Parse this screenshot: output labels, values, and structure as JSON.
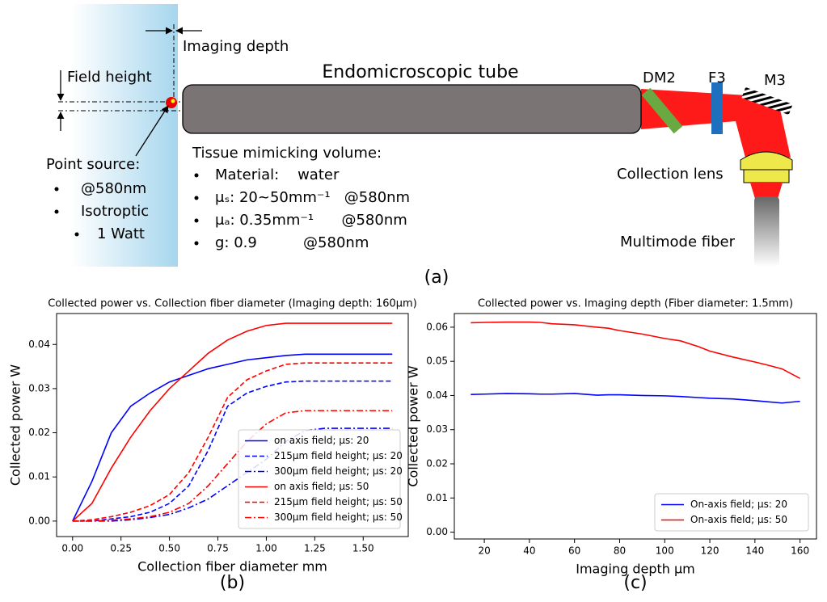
{
  "diagram": {
    "imaging_depth": "Imaging depth",
    "field_height": "Field height",
    "tube": "Endomicroscopic tube",
    "dm2": "DM2",
    "f3": "F3",
    "m3": "M3",
    "point_source": {
      "title": "Point source:",
      "items": [
        "@580nm",
        "Isotroptic",
        "1 Watt"
      ]
    },
    "tissue": {
      "title": "Tissue mimicking volume:",
      "items": [
        "Material:    water",
        "μₛ: 20~50mm⁻¹   @580nm",
        "μₐ: 0.35mm⁻¹      @580nm",
        "g: 0.9          @580nm"
      ]
    },
    "collection_lens": "Collection lens",
    "multimode_fiber": "Multimode fiber",
    "panel_label": "(a)"
  },
  "chart_data": [
    {
      "type": "line",
      "title": "Collected power vs. Collection fiber diameter (Imaging depth: 160μm)",
      "x_label": "Collection fiber diameter mm",
      "y_label": "Collected power W",
      "panel_label": "(b)",
      "x": [
        0,
        0.1,
        0.2,
        0.3,
        0.4,
        0.5,
        0.6,
        0.7,
        0.8,
        0.9,
        1.0,
        1.1,
        1.2,
        1.3,
        1.4,
        1.5,
        1.65
      ],
      "series": [
        {
          "name": "on axis field; μs: 20",
          "color": "#0000ff",
          "dash": "solid",
          "values": [
            0,
            0.009,
            0.02,
            0.026,
            0.029,
            0.0315,
            0.033,
            0.0345,
            0.0355,
            0.0365,
            0.037,
            0.0375,
            0.0378,
            0.0378,
            0.0378,
            0.0378,
            0.0378
          ]
        },
        {
          "name": "215μm field height; μs: 20",
          "color": "#0000ff",
          "dash": "dashed",
          "values": [
            0,
            0,
            0.0005,
            0.001,
            0.002,
            0.004,
            0.008,
            0.016,
            0.026,
            0.029,
            0.0305,
            0.0315,
            0.0317,
            0.0317,
            0.0317,
            0.0317,
            0.0317
          ]
        },
        {
          "name": "300μm field height; μs: 20",
          "color": "#0000ff",
          "dash": "dashdot",
          "values": [
            0,
            0,
            0,
            0.0003,
            0.0008,
            0.0015,
            0.003,
            0.005,
            0.008,
            0.011,
            0.014,
            0.018,
            0.0205,
            0.021,
            0.021,
            0.021,
            0.021
          ]
        },
        {
          "name": "on axis field; μs: 50",
          "color": "#ff0000",
          "dash": "solid",
          "values": [
            0,
            0.004,
            0.012,
            0.019,
            0.025,
            0.03,
            0.034,
            0.038,
            0.041,
            0.043,
            0.0443,
            0.0448,
            0.0448,
            0.0448,
            0.0448,
            0.0448,
            0.0448
          ]
        },
        {
          "name": "215μm field height; μs: 50",
          "color": "#ff0000",
          "dash": "dashed",
          "values": [
            0,
            0.0003,
            0.001,
            0.002,
            0.0035,
            0.006,
            0.011,
            0.019,
            0.028,
            0.032,
            0.034,
            0.0355,
            0.0358,
            0.0358,
            0.0358,
            0.0358,
            0.0358
          ]
        },
        {
          "name": "300μm field height; μs: 50",
          "color": "#ff0000",
          "dash": "dashdot",
          "values": [
            0,
            0,
            0.0002,
            0.0005,
            0.001,
            0.002,
            0.004,
            0.008,
            0.013,
            0.018,
            0.022,
            0.0245,
            0.025,
            0.025,
            0.025,
            0.025,
            0.025
          ]
        }
      ],
      "xlim": [
        -0.0825,
        1.7325
      ],
      "xticks": [
        {
          "value": 0,
          "label": "0.00"
        },
        {
          "value": 0.25,
          "label": "0.25"
        },
        {
          "value": 0.5,
          "label": "0.50"
        },
        {
          "value": 0.75,
          "label": "0.75"
        },
        {
          "value": 1,
          "label": "1.00"
        },
        {
          "value": 1.25,
          "label": "1.25"
        },
        {
          "value": 1.5,
          "label": "1.50"
        }
      ],
      "ylim": [
        -0.0035,
        0.047
      ],
      "yticks": [
        {
          "value": 0,
          "label": "0.00"
        },
        {
          "value": 0.01,
          "label": "0.01"
        },
        {
          "value": 0.02,
          "label": "0.02"
        },
        {
          "value": 0.03,
          "label": "0.03"
        },
        {
          "value": 0.04,
          "label": "0.04"
        }
      ],
      "legend": "lower right"
    },
    {
      "type": "line",
      "title": "Collected power vs. Imaging depth (Fiber diameter: 1.5mm)",
      "x_label": "Imaging depth μm",
      "y_label": "Collected power W",
      "panel_label": "(c)",
      "x": [
        14,
        20,
        30,
        40,
        45,
        50,
        60,
        70,
        75,
        80,
        90,
        100,
        107,
        115,
        120,
        130,
        140,
        145,
        152,
        160
      ],
      "series": [
        {
          "name": "On-axis field; μs: 20",
          "color": "#0000ff",
          "dash": "solid",
          "values": [
            0.0403,
            0.0404,
            0.0406,
            0.0405,
            0.0404,
            0.0404,
            0.0406,
            0.0401,
            0.0402,
            0.0402,
            0.04,
            0.0399,
            0.0397,
            0.0394,
            0.0392,
            0.039,
            0.0385,
            0.0382,
            0.0378,
            0.0383
          ]
        },
        {
          "name": "On-axis field; μs: 50",
          "color": "#ff0000",
          "dash": "solid",
          "values": [
            0.0613,
            0.0614,
            0.0615,
            0.0615,
            0.0614,
            0.061,
            0.0607,
            0.06,
            0.0597,
            0.059,
            0.058,
            0.0567,
            0.056,
            0.0543,
            0.053,
            0.0513,
            0.0498,
            0.049,
            0.0478,
            0.045
          ]
        }
      ],
      "xlim": [
        6.7,
        167.3
      ],
      "xticks": [
        20,
        40,
        60,
        80,
        100,
        120,
        140,
        160
      ],
      "ylim": [
        -0.002,
        0.064
      ],
      "yticks": [
        {
          "value": 0,
          "label": "0.00"
        },
        {
          "value": 0.01,
          "label": "0.01"
        },
        {
          "value": 0.02,
          "label": "0.02"
        },
        {
          "value": 0.03,
          "label": "0.03"
        },
        {
          "value": 0.04,
          "label": "0.04"
        },
        {
          "value": 0.05,
          "label": "0.05"
        },
        {
          "value": 0.06,
          "label": "0.06"
        }
      ],
      "legend": "lower right"
    }
  ]
}
